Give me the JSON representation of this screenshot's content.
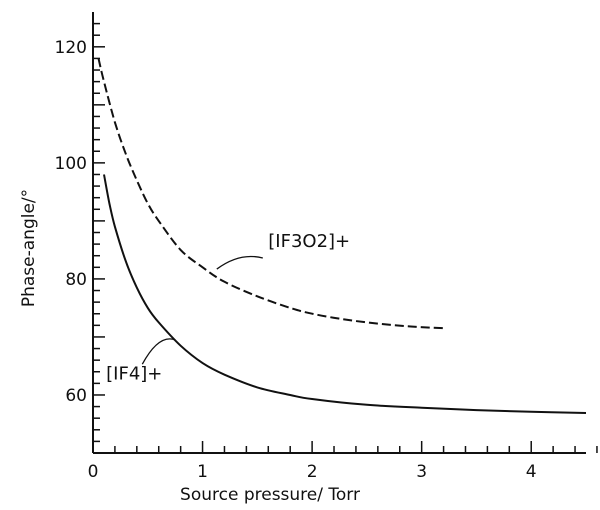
{
  "chart_data": {
    "type": "line",
    "title": "",
    "xlabel": "Source pressure/ Torr",
    "ylabel": "Phase-angle/°",
    "xlim": [
      0,
      4.5
    ],
    "ylim": [
      50,
      126
    ],
    "x_ticks": [
      "0",
      "1",
      "2",
      "3",
      "4"
    ],
    "y_ticks": [
      "60",
      "80",
      "100",
      "120"
    ],
    "grid": false,
    "legend": "none",
    "series": [
      {
        "name": "[IF3O2]+",
        "style": "dashed",
        "x": [
          0.05,
          0.1,
          0.2,
          0.3,
          0.4,
          0.5,
          0.6,
          0.8,
          1.0,
          1.2,
          1.5,
          1.8,
          2.0,
          2.3,
          2.6,
          2.9,
          3.2
        ],
        "y": [
          118,
          114,
          107,
          101.5,
          97,
          93,
          90,
          85,
          82,
          79.5,
          77,
          75,
          74,
          73,
          72.3,
          71.8,
          71.5
        ]
      },
      {
        "name": "[IF4]+",
        "style": "solid",
        "x": [
          0.1,
          0.15,
          0.2,
          0.3,
          0.4,
          0.5,
          0.6,
          0.8,
          1.0,
          1.2,
          1.5,
          1.8,
          2.0,
          2.5,
          3.0,
          3.5,
          4.0,
          4.5
        ],
        "y": [
          98,
          93,
          89,
          83,
          78.5,
          75,
          72.5,
          68.5,
          65.5,
          63.5,
          61.3,
          60,
          59.3,
          58.3,
          57.8,
          57.4,
          57.1,
          56.9
        ]
      }
    ]
  }
}
